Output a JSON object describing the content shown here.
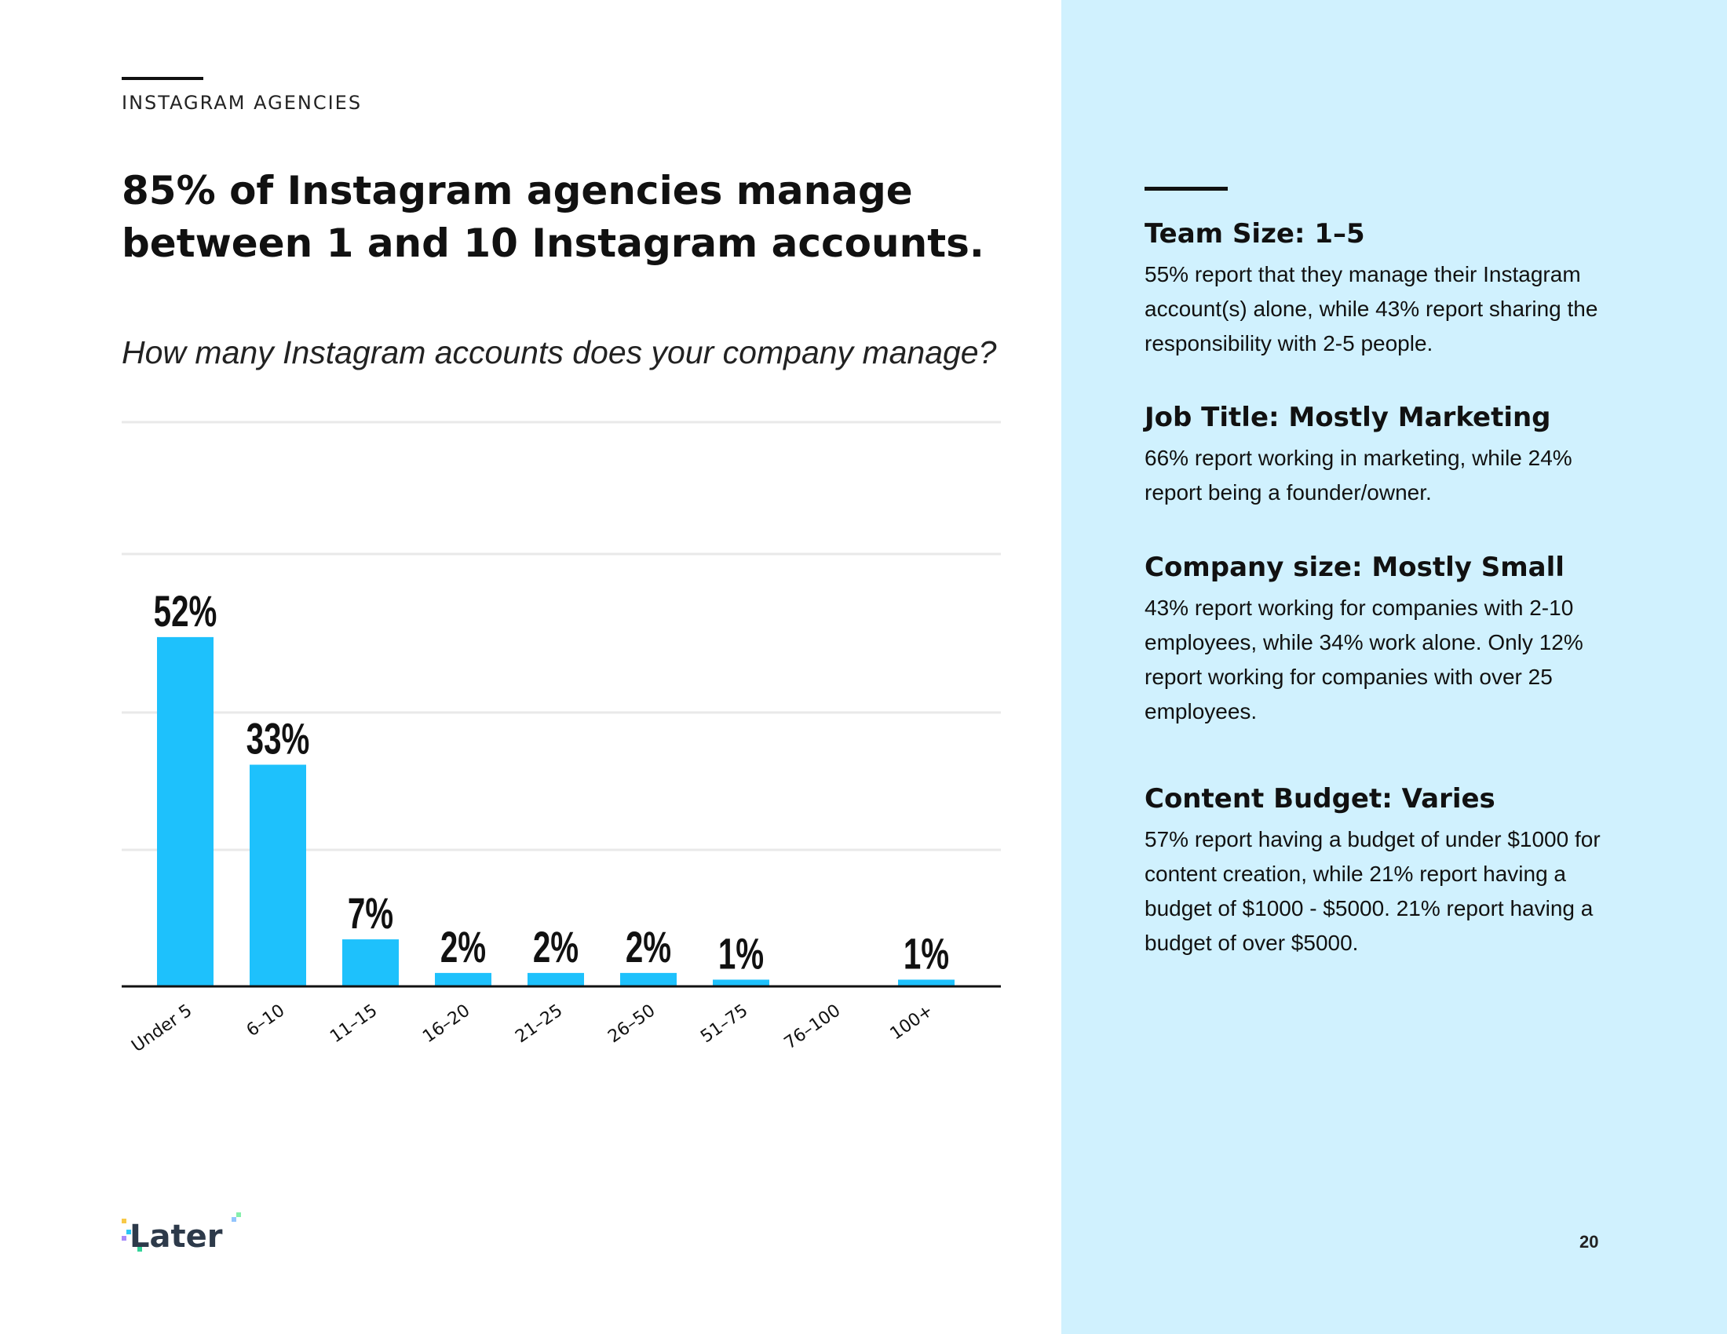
{
  "section_label": "INSTAGRAM AGENCIES",
  "headline": "85% of Instagram agencies manage between 1 and 10 Instagram accounts.",
  "question": "How many Instagram accounts does your company manage?",
  "colors": {
    "bar": "#1ec1fc",
    "panel_bg": "#d0f1fe",
    "text": "#111111"
  },
  "chart_data": {
    "type": "bar",
    "title": "How many Instagram accounts does your company manage?",
    "xlabel": "",
    "ylabel": "",
    "categories": [
      "Under 5",
      "6–10",
      "11–15",
      "16–20",
      "21–25",
      "26–50",
      "51–75",
      "76–100",
      "100+"
    ],
    "values": [
      52,
      33,
      7,
      2,
      2,
      2,
      1,
      0,
      1
    ],
    "data_labels": [
      "52%",
      "33%",
      "7%",
      "2%",
      "2%",
      "2%",
      "1%",
      "",
      "1%"
    ],
    "ylim": [
      0,
      60
    ],
    "grid": true
  },
  "info_blocks": [
    {
      "title": "Team Size: 1–5",
      "text": "55% report that they manage their Instagram account(s) alone, while 43% report sharing the responsibility with 2-5 people."
    },
    {
      "title": "Job Title: Mostly Marketing",
      "text": "66% report working in marketing, while 24% report being a founder/owner."
    },
    {
      "title": "Company size: Mostly Small",
      "text": "43% report working for companies with 2-10 employees, while 34% work alone. Only 12% report working for companies with over 25 employees."
    },
    {
      "title": "Content Budget: Varies",
      "text": "57% report having a budget of under $1000 for content creation, while 21% report having a budget of $1000 - $5000. 21% report having a budget of over $5000."
    }
  ],
  "logo": {
    "text": "Later",
    "icon": "later-logo"
  },
  "page_number": "20"
}
